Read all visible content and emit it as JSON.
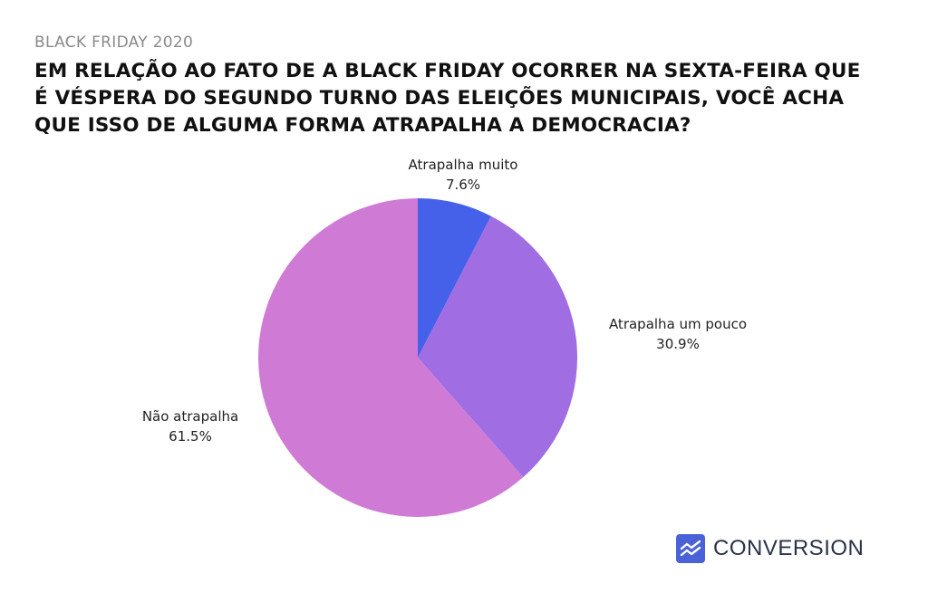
{
  "header": {
    "kicker": "BLACK FRIDAY 2020",
    "title": "EM RELAÇÃO AO FATO DE A BLACK FRIDAY OCORRER NA SEXTA-FEIRA QUE É VÉSPERA DO SEGUNDO TURNO DAS ELEIÇÕES MUNICIPAIS, VOCÊ ACHA QUE ISSO DE ALGUMA FORMA ATRAPALHA A DEMOCRACIA?"
  },
  "chart_data": {
    "type": "pie",
    "title": "EM RELAÇÃO AO FATO DE A BLACK FRIDAY OCORRER NA SEXTA-FEIRA QUE É VÉSPERA DO SEGUNDO TURNO DAS ELEIÇÕES MUNICIPAIS, VOCÊ ACHA QUE ISSO DE ALGUMA FORMA ATRAPALHA A DEMOCRACIA?",
    "slices": [
      {
        "label": "Atrapalha muito",
        "value": 7.6,
        "value_label": "7.6%",
        "color": "#4561ea"
      },
      {
        "label": "Atrapalha um pouco",
        "value": 30.9,
        "value_label": "30.9%",
        "color": "#a06de3"
      },
      {
        "label": "Não atrapalha",
        "value": 61.5,
        "value_label": "61.5%",
        "color": "#cf7bd6"
      }
    ],
    "start_angle": "12 o'clock",
    "direction": "clockwise",
    "legend": "none",
    "labels": "outside"
  },
  "logo": {
    "text": "CONVERSION",
    "icon": "trend-line-icon",
    "color": "#4a62d8"
  }
}
